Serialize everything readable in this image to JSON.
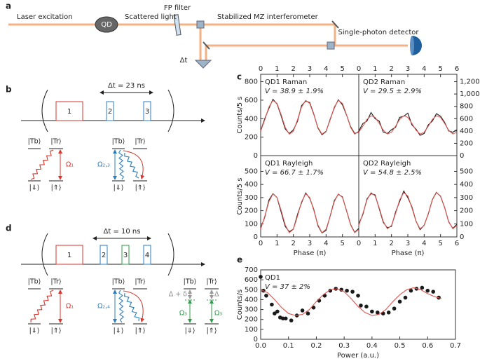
{
  "panel_labels": [
    "a",
    "b",
    "c",
    "d",
    "e"
  ],
  "panel_a": {
    "laser": "Laser excitation",
    "qd": "QD",
    "scattered": "Scattered light",
    "filter": "FP filter",
    "interferometer": "Stabilized MZ interferometer",
    "detector": "Single-photon detector",
    "delay": "Δt"
  },
  "panel_b": {
    "delay": "Δt = 23 ns",
    "pulses": [
      "1",
      "2",
      "3"
    ],
    "systems": [
      {
        "tb": "|Tb⟩",
        "tr": "|Tr⟩",
        "down": "|⇓⟩",
        "up": "|⇑⟩",
        "rabi": "Ω₁"
      },
      {
        "tb": "|Tb⟩",
        "tr": "|Tr⟩",
        "down": "|⇓⟩",
        "up": "|⇑⟩",
        "rabi": "Ω₂,₃"
      }
    ]
  },
  "panel_d": {
    "delay": "Δt = 10 ns",
    "pulses": [
      "1",
      "2",
      "3",
      "4"
    ],
    "systems": [
      {
        "tb": "|Tb⟩",
        "tr": "|Tr⟩",
        "down": "|⇓⟩",
        "up": "|⇑⟩",
        "rabi": "Ω₁"
      },
      {
        "tb": "|Tb⟩",
        "tr": "|Tr⟩",
        "down": "|⇓⟩",
        "up": "|⇑⟩",
        "rabi": "Ω₂,₄"
      },
      {
        "tb": "|Tb⟩",
        "tr": "|Tr⟩",
        "down": "|⇓⟩",
        "up": "|⇑⟩",
        "rabi": "Ω₃",
        "rabi_right": "Ω₃",
        "detuning_left": "Δ + δ",
        "detuning_right": "Δ"
      }
    ]
  },
  "chart_data": [
    {
      "type": "line",
      "title": "QD1 Raman",
      "annotation": "V = 38.9 ± 1.9%",
      "ylabel": "Counts/5 s",
      "x_axis_position": "top",
      "y_axis_position": "left",
      "x": [
        0,
        0.25,
        0.5,
        0.75,
        1,
        1.25,
        1.5,
        1.75,
        2,
        2.25,
        2.5,
        2.75,
        3,
        3.25,
        3.5,
        3.75,
        4,
        4.25,
        4.5,
        4.75,
        5,
        5.25,
        5.5,
        5.75,
        6
      ],
      "xlim": [
        0,
        6
      ],
      "xticks": [
        0,
        1,
        2,
        3,
        4,
        5
      ],
      "ylim": [
        0,
        880
      ],
      "yticks": [
        0,
        200,
        400,
        600,
        800
      ],
      "series": [
        {
          "color": "#1a1a1a",
          "values": [
            270,
            400,
            510,
            610,
            560,
            430,
            290,
            240,
            280,
            370,
            540,
            590,
            575,
            450,
            300,
            225,
            260,
            395,
            515,
            605,
            550,
            440,
            315,
            240,
            255
          ]
        },
        {
          "color": "#e0544f",
          "values": [
            265,
            386,
            524,
            598,
            565,
            444,
            306,
            232,
            265,
            386,
            524,
            598,
            565,
            444,
            306,
            232,
            265,
            386,
            524,
            598,
            565,
            444,
            306,
            232,
            265
          ]
        }
      ]
    },
    {
      "type": "line",
      "title": "QD2 Raman",
      "annotation": "V = 29.5 ± 2.9%",
      "x_axis_position": "top",
      "y_axis_position": "right",
      "x": [
        0,
        0.25,
        0.5,
        0.75,
        1,
        1.25,
        1.5,
        1.75,
        2,
        2.25,
        2.5,
        2.75,
        3,
        3.25,
        3.5,
        3.75,
        4,
        4.25,
        4.5,
        4.75,
        5,
        5.25,
        5.5,
        5.75,
        6
      ],
      "xlim": [
        0,
        6
      ],
      "xticks": [
        0,
        1,
        2,
        3,
        4,
        5,
        6
      ],
      "ylim": [
        0,
        1320
      ],
      "yticks": [
        0,
        200,
        400,
        600,
        800,
        {
          "value": 1000,
          "label": "1,000"
        },
        {
          "value": 1200,
          "label": "1,200"
        }
      ],
      "series": [
        {
          "color": "#1a1a1a",
          "values": [
            400,
            520,
            560,
            700,
            600,
            560,
            380,
            360,
            420,
            460,
            620,
            640,
            690,
            500,
            430,
            330,
            360,
            500,
            560,
            680,
            640,
            540,
            400,
            380,
            420
          ]
        },
        {
          "color": "#e0544f",
          "values": [
            379,
            477,
            588,
            648,
            621,
            523,
            412,
            352,
            379,
            477,
            588,
            648,
            621,
            523,
            412,
            352,
            379,
            477,
            588,
            648,
            621,
            523,
            412,
            352,
            379
          ]
        }
      ]
    },
    {
      "type": "line",
      "title": "QD1 Rayleigh",
      "annotation": "V = 66.7 ± 1.7%",
      "ylabel": "Counts/5 s",
      "xlabel": "Phase (π)",
      "x_axis_position": "bottom",
      "y_axis_position": "left",
      "x": [
        0,
        0.25,
        0.5,
        0.75,
        1,
        1.25,
        1.5,
        1.75,
        2,
        2.25,
        2.5,
        2.75,
        3,
        3.25,
        3.5,
        3.75,
        4,
        4.25,
        4.5,
        4.75,
        5,
        5.25,
        5.5,
        5.75,
        6
      ],
      "xlim": [
        0,
        6
      ],
      "xticks": [
        0,
        1,
        2,
        3,
        4,
        5
      ],
      "ylim": [
        0,
        620
      ],
      "yticks": [
        0,
        100,
        200,
        300,
        400,
        500
      ],
      "series": [
        {
          "color": "#1a1a1a",
          "values": [
            70,
            150,
            280,
            330,
            300,
            190,
            80,
            40,
            60,
            170,
            260,
            335,
            295,
            210,
            85,
            30,
            50,
            160,
            275,
            325,
            305,
            200,
            95,
            35,
            65
          ]
        },
        {
          "color": "#e0544f",
          "values": [
            59,
            157,
            268,
            328,
            301,
            203,
            92,
            32,
            59,
            157,
            268,
            328,
            301,
            203,
            92,
            32,
            59,
            157,
            268,
            328,
            301,
            203,
            92,
            32,
            59
          ]
        }
      ]
    },
    {
      "type": "line",
      "title": "QD2 Rayleigh",
      "annotation": "V = 54.8 ± 2.5%",
      "xlabel": "Phase (π)",
      "x_axis_position": "bottom",
      "y_axis_position": "right",
      "x": [
        0,
        0.25,
        0.5,
        0.75,
        1,
        1.25,
        1.5,
        1.75,
        2,
        2.25,
        2.5,
        2.75,
        3,
        3.25,
        3.5,
        3.75,
        4,
        4.25,
        4.5,
        4.75,
        5,
        5.25,
        5.5,
        5.75,
        6
      ],
      "xlim": [
        0,
        6
      ],
      "xticks": [
        0,
        1,
        2,
        3,
        4,
        5,
        6
      ],
      "ylim": [
        0,
        620
      ],
      "yticks": [
        0,
        100,
        200,
        300,
        400,
        500
      ],
      "series": [
        {
          "color": "#1a1a1a",
          "values": [
            100,
            170,
            290,
            330,
            320,
            215,
            110,
            70,
            80,
            190,
            270,
            350,
            300,
            230,
            120,
            55,
            90,
            175,
            285,
            340,
            310,
            225,
            115,
            65,
            95
          ]
        },
        {
          "color": "#e0544f",
          "values": [
            87,
            178,
            282,
            338,
            313,
            222,
            118,
            62,
            87,
            178,
            282,
            338,
            313,
            222,
            118,
            62,
            87,
            178,
            282,
            338,
            313,
            222,
            118,
            62,
            87
          ]
        }
      ]
    },
    {
      "type": "scatter",
      "title": "QD1",
      "annotation": "V = 37 ± 2%",
      "xlabel": "Power (a.u.)",
      "ylabel": "Counts/s",
      "x_axis_position": "bottom",
      "y_axis_position": "left",
      "xlim": [
        0,
        0.7
      ],
      "xticks": [
        {
          "value": 0,
          "label": "0.0"
        },
        0.1,
        0.2,
        0.3,
        0.4,
        0.5,
        0.6,
        0.7
      ],
      "ylim": [
        0,
        700
      ],
      "yticks": [
        0,
        100,
        200,
        300,
        400,
        500,
        600,
        700
      ],
      "series": [
        {
          "type": "scatter",
          "color": "#1a1a1a",
          "x": [
            0,
            0.01,
            0.02,
            0.04,
            0.05,
            0.06,
            0.07,
            0.08,
            0.09,
            0.11,
            0.13,
            0.15,
            0.17,
            0.19,
            0.21,
            0.23,
            0.25,
            0.27,
            0.29,
            0.31,
            0.33,
            0.35,
            0.36,
            0.38,
            0.4,
            0.42,
            0.44,
            0.46,
            0.48,
            0.5,
            0.52,
            0.54,
            0.56,
            0.58,
            0.6,
            0.62,
            0.64
          ],
          "values": [
            630,
            490,
            440,
            350,
            260,
            280,
            220,
            210,
            210,
            190,
            240,
            290,
            260,
            320,
            390,
            440,
            490,
            510,
            500,
            490,
            480,
            440,
            340,
            330,
            280,
            270,
            260,
            270,
            310,
            380,
            420,
            490,
            510,
            520,
            490,
            480,
            420
          ]
        },
        {
          "type": "line",
          "color": "#e0544f",
          "x": [
            0,
            0.025,
            0.05,
            0.075,
            0.1,
            0.125,
            0.15,
            0.175,
            0.2,
            0.225,
            0.25,
            0.275,
            0.3,
            0.325,
            0.35,
            0.375,
            0.4,
            0.425,
            0.45,
            0.475,
            0.5,
            0.525,
            0.55,
            0.575,
            0.6,
            0.625,
            0.65
          ],
          "values": [
            500,
            470,
            400,
            320,
            260,
            240,
            250,
            300,
            380,
            450,
            500,
            510,
            480,
            410,
            330,
            270,
            240,
            250,
            300,
            380,
            450,
            500,
            520,
            500,
            460,
            430,
            410
          ]
        }
      ]
    }
  ]
}
